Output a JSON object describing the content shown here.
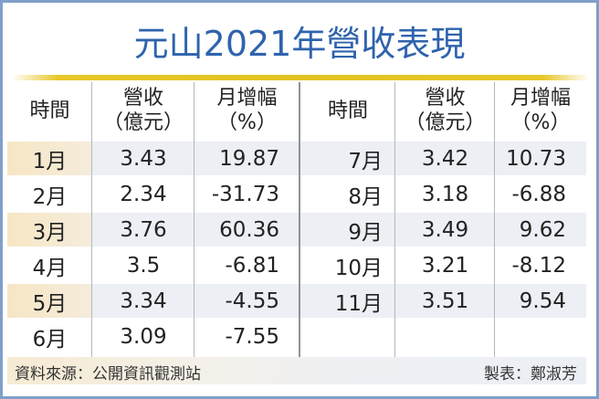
{
  "title": "元山2021年營收表現",
  "colors": {
    "title": "#2f63ad",
    "border": "#7f9fc9",
    "gold_line": "#e3c31f",
    "highlight_month": "#f5e8cc",
    "highlight_row": "#eceff4"
  },
  "table": {
    "headers": [
      {
        "line1": "時間",
        "line2": ""
      },
      {
        "line1": "營收",
        "line2": "（億元）"
      },
      {
        "line1": "月增幅",
        "line2": "（%）"
      },
      {
        "line1": "時間",
        "line2": ""
      },
      {
        "line1": "營收",
        "line2": "（億元）"
      },
      {
        "line1": "月增幅",
        "line2": "（%）"
      }
    ],
    "left_rows": [
      {
        "month": "1月",
        "revenue": "3.43",
        "mom": "19.87"
      },
      {
        "month": "2月",
        "revenue": "2.34",
        "mom": "-31.73"
      },
      {
        "month": "3月",
        "revenue": "3.76",
        "mom": "60.36"
      },
      {
        "month": "4月",
        "revenue": "3.5",
        "mom": "-6.81"
      },
      {
        "month": "5月",
        "revenue": "3.34",
        "mom": "-4.55"
      },
      {
        "month": "6月",
        "revenue": "3.09",
        "mom": "-7.55"
      }
    ],
    "right_rows": [
      {
        "month": "7月",
        "revenue": "3.42",
        "mom": "10.73"
      },
      {
        "month": "8月",
        "revenue": "3.18",
        "mom": "-6.88"
      },
      {
        "month": "9月",
        "revenue": "3.49",
        "mom": "9.62"
      },
      {
        "month": "10月",
        "revenue": "3.21",
        "mom": "-8.12"
      },
      {
        "month": "11月",
        "revenue": "3.51",
        "mom": "9.54"
      },
      {
        "month": "",
        "revenue": "",
        "mom": ""
      }
    ]
  },
  "footer": {
    "source": "資料來源：公開資訊觀測站",
    "author": "製表：鄭淑芳"
  }
}
